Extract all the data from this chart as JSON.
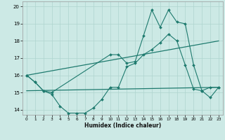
{
  "title": "",
  "xlabel": "Humidex (Indice chaleur)",
  "background_color": "#cce9e5",
  "grid_color": "#aed4cf",
  "line_color": "#1e7a6e",
  "x_range": [
    -0.5,
    23.5
  ],
  "y_range": [
    13.7,
    20.3
  ],
  "yticks": [
    14,
    15,
    16,
    17,
    18,
    19,
    20
  ],
  "xticks": [
    0,
    1,
    2,
    3,
    4,
    5,
    6,
    7,
    8,
    9,
    10,
    11,
    12,
    13,
    14,
    15,
    16,
    17,
    18,
    19,
    20,
    21,
    22,
    23
  ],
  "series": [
    {
      "x": [
        0,
        1,
        2,
        3,
        4,
        5,
        6,
        7,
        8,
        9,
        10,
        11,
        12,
        13,
        14,
        15,
        16,
        17,
        18,
        19,
        20,
        21,
        22,
        23
      ],
      "y": [
        16.0,
        15.6,
        15.1,
        14.9,
        14.2,
        13.8,
        13.8,
        13.8,
        14.1,
        14.6,
        15.3,
        15.3,
        16.5,
        16.7,
        17.2,
        17.5,
        17.9,
        18.4,
        18.0,
        16.6,
        15.2,
        15.1,
        15.3,
        15.3
      ],
      "marker": "D",
      "markersize": 2.0,
      "linewidth": 0.8,
      "has_marker": true
    },
    {
      "x": [
        0,
        1,
        2,
        3,
        10,
        11,
        12,
        13,
        14,
        15,
        16,
        17,
        18,
        19,
        20,
        21,
        22,
        23
      ],
      "y": [
        16.0,
        15.6,
        15.1,
        15.0,
        17.2,
        17.2,
        16.7,
        16.8,
        18.3,
        19.8,
        18.8,
        19.8,
        19.1,
        19.0,
        16.6,
        15.1,
        14.7,
        15.3
      ],
      "marker": "D",
      "markersize": 2.0,
      "linewidth": 0.8,
      "has_marker": true
    },
    {
      "x": [
        0,
        23
      ],
      "y": [
        16.0,
        18.0
      ],
      "marker": null,
      "markersize": 0,
      "linewidth": 0.9,
      "has_marker": false
    },
    {
      "x": [
        0,
        23
      ],
      "y": [
        15.1,
        15.3
      ],
      "marker": null,
      "markersize": 0,
      "linewidth": 0.9,
      "has_marker": false
    }
  ]
}
